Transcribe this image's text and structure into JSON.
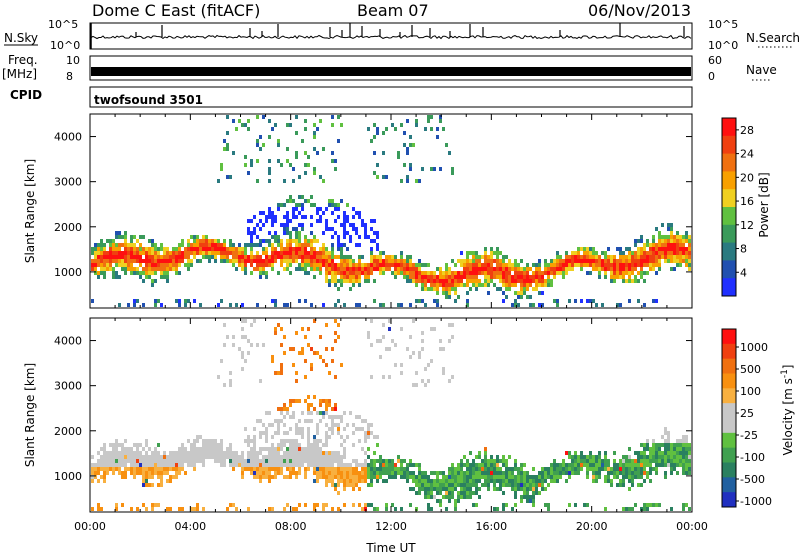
{
  "header": {
    "title": "Dome C East (fitACF)",
    "beam": "Beam 07",
    "date": "06/Nov/2013"
  },
  "aux_panel": {
    "nsky_label": "N.Sky",
    "nsky_ticks": [
      "10^5",
      "10^0"
    ],
    "nsearch_label": "N.Search",
    "freq_label_line1": "Freq.",
    "freq_label_line2": "[MHz]",
    "freq_ticks": [
      "10",
      "8"
    ],
    "nave_ticks": [
      "60",
      "0"
    ],
    "nave_label": "Nave",
    "cpid_label": "CPID",
    "cpid_value": "twofsound 3501"
  },
  "chart_data": [
    {
      "type": "heatmap",
      "name": "Power",
      "ylabel": "Slant Range [km]",
      "xlabel": "",
      "x_ticks": [
        "00:00",
        "04:00",
        "08:00",
        "12:00",
        "16:00",
        "20:00",
        "00:00"
      ],
      "y_ticks": [
        1000,
        2000,
        3000,
        4000
      ],
      "ylim": [
        200,
        4500
      ],
      "xlim_hours": [
        0,
        24
      ],
      "colorbar": {
        "label": "Power [dB]",
        "ticks": [
          4,
          8,
          12,
          16,
          20,
          24,
          28
        ],
        "range": [
          0,
          30
        ],
        "colors": [
          "#2030ff",
          "#2050b0",
          "#2a7a80",
          "#3a9a5a",
          "#60c040",
          "#f0d020",
          "#f8a000",
          "#f07010",
          "#f04010",
          "#ff1010"
        ]
      }
    },
    {
      "type": "heatmap",
      "name": "Velocity",
      "ylabel": "Slant Range [km]",
      "xlabel": "Time UT",
      "x_ticks": [
        "00:00",
        "04:00",
        "08:00",
        "12:00",
        "16:00",
        "20:00",
        "00:00"
      ],
      "y_ticks": [
        1000,
        2000,
        3000,
        4000
      ],
      "ylim": [
        200,
        4500
      ],
      "xlim_hours": [
        0,
        24
      ],
      "colorbar": {
        "label": "Velocity [m s^-1]",
        "ticks": [
          "1000",
          "500",
          "100",
          "25",
          "-25",
          "-100",
          "-500",
          "-1000"
        ],
        "colors": [
          "#2030c0",
          "#2060a0",
          "#2a8060",
          "#40a050",
          "#60c040",
          "#c8c8c8",
          "#c8c8c8",
          "#f8b040",
          "#f89010",
          "#f07010",
          "#f04010",
          "#ff1010"
        ]
      }
    }
  ]
}
